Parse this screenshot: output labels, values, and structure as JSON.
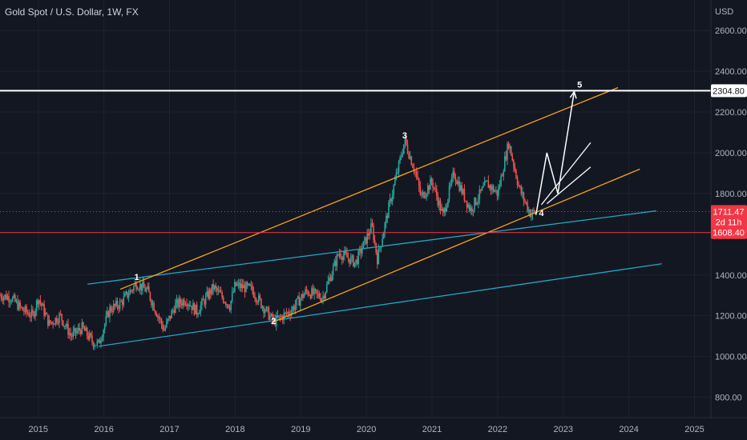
{
  "header": {
    "title": "Gold Spot / U.S. Dollar, 1W, FX"
  },
  "price_axis": {
    "currency": "USD",
    "ticks": [
      "2600.00",
      "2400.00",
      "2200.00",
      "2000.00",
      "1800.00",
      "1400.00",
      "1200.00",
      "1000.00",
      "800.00"
    ]
  },
  "time_axis": {
    "ticks": [
      "2015",
      "2016",
      "2017",
      "2018",
      "2019",
      "2020",
      "2021",
      "2022",
      "2023",
      "2024",
      "2025"
    ]
  },
  "price_tags": {
    "target": {
      "value": "2304.80",
      "bg": "#ffffff",
      "fg": "#131722"
    },
    "last": {
      "value": "1711.47",
      "countdown": "2d 11h",
      "bg": "#f23645",
      "fg": "#ffffff"
    },
    "level": {
      "value": "1608.40",
      "bg": "#f23645",
      "fg": "#ffffff"
    }
  },
  "wave_labels": [
    "1",
    "2",
    "3",
    "4",
    "5"
  ],
  "colors": {
    "background": "#131722",
    "up": "#26a69a",
    "down": "#ef5350",
    "channel": "#f7a21b",
    "support": "#22a7c4",
    "projection": "#ffffff",
    "level": "#f23645"
  },
  "chart_data": {
    "type": "candlestick",
    "title": "Gold Spot / U.S. Dollar, 1W, FX",
    "interval": "1W",
    "ylim": [
      700,
      2750
    ],
    "xlim": [
      "2014-06",
      "2025-04"
    ],
    "grid": true,
    "series": [
      {
        "name": "Gold Spot / U.S. Dollar",
        "points": [
          [
            "2014-06",
            1300
          ],
          [
            "2014-08",
            1290
          ],
          [
            "2014-10",
            1230
          ],
          [
            "2014-12",
            1200
          ],
          [
            "2015-01",
            1290
          ],
          [
            "2015-03",
            1160
          ],
          [
            "2015-05",
            1200
          ],
          [
            "2015-07",
            1100
          ],
          [
            "2015-09",
            1140
          ],
          [
            "2015-11",
            1070
          ],
          [
            "2015-12",
            1060
          ],
          [
            "2016-02",
            1230
          ],
          [
            "2016-04",
            1260
          ],
          [
            "2016-07",
            1360
          ],
          [
            "2016-09",
            1320
          ],
          [
            "2016-12",
            1130
          ],
          [
            "2017-02",
            1250
          ],
          [
            "2017-04",
            1280
          ],
          [
            "2017-06",
            1220
          ],
          [
            "2017-09",
            1340
          ],
          [
            "2017-12",
            1250
          ],
          [
            "2018-01",
            1350
          ],
          [
            "2018-04",
            1330
          ],
          [
            "2018-06",
            1250
          ],
          [
            "2018-08",
            1170
          ],
          [
            "2018-11",
            1220
          ],
          [
            "2019-02",
            1320
          ],
          [
            "2019-05",
            1290
          ],
          [
            "2019-08",
            1510
          ],
          [
            "2019-11",
            1460
          ],
          [
            "2020-02",
            1640
          ],
          [
            "2020-03",
            1480
          ],
          [
            "2020-05",
            1720
          ],
          [
            "2020-08",
            2060
          ],
          [
            "2020-10",
            1900
          ],
          [
            "2020-11",
            1780
          ],
          [
            "2021-01",
            1860
          ],
          [
            "2021-03",
            1690
          ],
          [
            "2021-05",
            1900
          ],
          [
            "2021-08",
            1720
          ],
          [
            "2021-11",
            1850
          ],
          [
            "2022-01",
            1800
          ],
          [
            "2022-03",
            2050
          ],
          [
            "2022-05",
            1820
          ],
          [
            "2022-07",
            1700
          ],
          [
            "2022-08",
            1711.47
          ]
        ]
      }
    ],
    "waves": [
      {
        "label": "1",
        "x": "2016-07",
        "y": 1375
      },
      {
        "label": "2",
        "x": "2018-08",
        "y": 1160
      },
      {
        "label": "3",
        "x": "2020-08",
        "y": 2070
      },
      {
        "label": "4",
        "x": "2022-09",
        "y": 1690
      },
      {
        "label": "5",
        "x": "2023-04",
        "y": 2320
      }
    ],
    "lines": [
      {
        "name": "channel-upper",
        "from": [
          "2016-04",
          1330
        ],
        "to": [
          "2023-11",
          2320
        ]
      },
      {
        "name": "channel-lower",
        "from": [
          "2018-08",
          1170
        ],
        "to": [
          "2024-03",
          1920
        ]
      },
      {
        "name": "support-upper",
        "from": [
          "2015-10",
          1355
        ],
        "to": [
          "2024-06",
          1715
        ]
      },
      {
        "name": "support-lower",
        "from": [
          "2015-12",
          1050
        ],
        "to": [
          "2024-07",
          1455
        ]
      },
      {
        "name": "projection-path",
        "points": [
          [
            "2022-08",
            1695
          ],
          [
            "2022-10",
            2000
          ],
          [
            "2022-12",
            1800
          ],
          [
            "2023-03",
            2300
          ]
        ]
      },
      {
        "name": "fork-upper",
        "from": [
          "2022-09",
          1745
        ],
        "to": [
          "2023-06",
          2050
        ]
      },
      {
        "name": "fork-lower",
        "from": [
          "2022-10",
          1750
        ],
        "to": [
          "2023-06",
          1930
        ]
      },
      {
        "name": "resistance-level",
        "y": 2304.8
      },
      {
        "name": "support-level",
        "y": 1608.4
      }
    ]
  }
}
